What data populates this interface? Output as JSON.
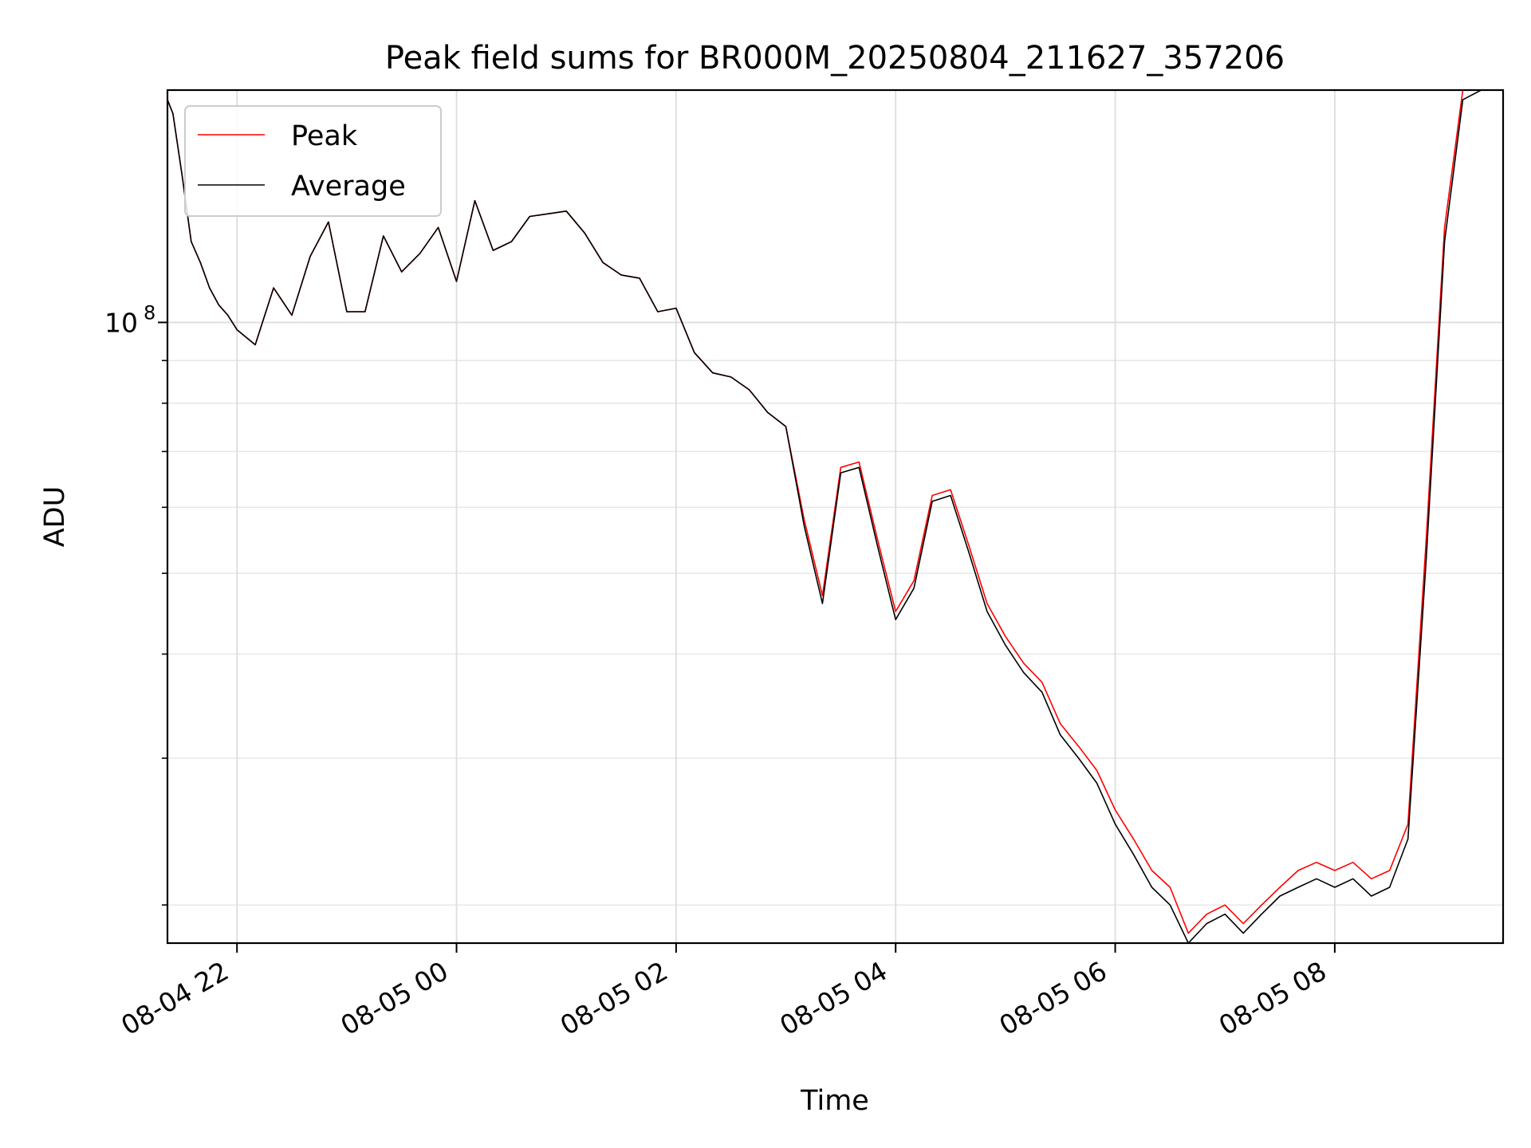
{
  "chart_data": {
    "type": "line",
    "title": "Peak field sums for BR000M_20250804_211627_357206",
    "xlabel": "Time",
    "ylabel": "ADU",
    "y_scale": "log",
    "ylim": [
      18000000,
      190000000
    ],
    "xlim": [
      "2025-08-04 21:22",
      "2025-08-05 09:32"
    ],
    "x_ticks": [
      {
        "value": "2025-08-04 22:00",
        "label": "08-04 22"
      },
      {
        "value": "2025-08-05 00:00",
        "label": "08-05 00"
      },
      {
        "value": "2025-08-05 02:00",
        "label": "08-05 02"
      },
      {
        "value": "2025-08-05 04:00",
        "label": "08-05 04"
      },
      {
        "value": "2025-08-05 06:00",
        "label": "08-05 06"
      },
      {
        "value": "2025-08-05 08:00",
        "label": "08-05 08"
      }
    ],
    "y_major_ticks": [
      {
        "value": 100000000,
        "base": "10",
        "exp": "8"
      }
    ],
    "y_minor_ticks": [
      20000000,
      30000000,
      40000000,
      50000000,
      60000000,
      70000000,
      80000000,
      90000000,
      200000000
    ],
    "grid": true,
    "legend_position": "top-left",
    "x": [
      "2025-08-04 21:22",
      "2025-08-04 21:25",
      "2025-08-04 21:30",
      "2025-08-04 21:35",
      "2025-08-04 21:40",
      "2025-08-04 21:45",
      "2025-08-04 21:50",
      "2025-08-04 21:55",
      "2025-08-04 22:00",
      "2025-08-04 22:10",
      "2025-08-04 22:20",
      "2025-08-04 22:30",
      "2025-08-04 22:40",
      "2025-08-04 22:50",
      "2025-08-04 23:00",
      "2025-08-04 23:10",
      "2025-08-04 23:20",
      "2025-08-04 23:30",
      "2025-08-04 23:40",
      "2025-08-04 23:50",
      "2025-08-05 00:00",
      "2025-08-05 00:10",
      "2025-08-05 00:20",
      "2025-08-05 00:30",
      "2025-08-05 00:40",
      "2025-08-05 00:50",
      "2025-08-05 01:00",
      "2025-08-05 01:10",
      "2025-08-05 01:20",
      "2025-08-05 01:30",
      "2025-08-05 01:40",
      "2025-08-05 01:50",
      "2025-08-05 02:00",
      "2025-08-05 02:10",
      "2025-08-05 02:20",
      "2025-08-05 02:30",
      "2025-08-05 02:40",
      "2025-08-05 02:50",
      "2025-08-05 03:00",
      "2025-08-05 03:10",
      "2025-08-05 03:20",
      "2025-08-05 03:30",
      "2025-08-05 03:40",
      "2025-08-05 03:50",
      "2025-08-05 04:00",
      "2025-08-05 04:10",
      "2025-08-05 04:20",
      "2025-08-05 04:30",
      "2025-08-05 04:40",
      "2025-08-05 04:50",
      "2025-08-05 05:00",
      "2025-08-05 05:10",
      "2025-08-05 05:20",
      "2025-08-05 05:30",
      "2025-08-05 05:40",
      "2025-08-05 05:50",
      "2025-08-05 06:00",
      "2025-08-05 06:10",
      "2025-08-05 06:20",
      "2025-08-05 06:30",
      "2025-08-05 06:40",
      "2025-08-05 06:50",
      "2025-08-05 07:00",
      "2025-08-05 07:10",
      "2025-08-05 07:20",
      "2025-08-05 07:30",
      "2025-08-05 07:40",
      "2025-08-05 07:50",
      "2025-08-05 08:00",
      "2025-08-05 08:10",
      "2025-08-05 08:20",
      "2025-08-05 08:30",
      "2025-08-05 08:40",
      "2025-08-05 08:50",
      "2025-08-05 09:00",
      "2025-08-05 09:10",
      "2025-08-05 09:20",
      "2025-08-05 09:25"
    ],
    "series": [
      {
        "name": "Peak",
        "color": "#ff0000",
        "values": [
          185000000,
          178000000,
          150000000,
          125000000,
          118000000,
          110000000,
          105000000,
          102000000,
          98000000,
          94000000,
          110000000,
          102000000,
          120000000,
          132000000,
          103000000,
          103000000,
          127000000,
          115000000,
          121000000,
          130000000,
          112000000,
          140000000,
          122000000,
          125000000,
          134000000,
          135000000,
          136000000,
          128000000,
          118000000,
          114000000,
          113000000,
          103000000,
          104000000,
          92000000,
          87000000,
          86000000,
          83000000,
          78000000,
          75000000,
          58000000,
          47000000,
          67000000,
          68000000,
          55000000,
          45000000,
          49000000,
          62000000,
          63000000,
          54000000,
          46000000,
          42000000,
          39000000,
          37000000,
          33000000,
          31000000,
          29000000,
          26000000,
          24000000,
          22000000,
          21000000,
          18500000,
          19500000,
          20000000,
          19000000,
          20000000,
          21000000,
          22000000,
          22500000,
          22000000,
          22500000,
          21500000,
          22000000,
          25000000,
          55000000,
          130000000,
          190000000,
          190000000,
          190000000
        ]
      },
      {
        "name": "Average",
        "color": "#000000",
        "values": [
          185000000,
          178000000,
          150000000,
          125000000,
          118000000,
          110000000,
          105000000,
          102000000,
          98000000,
          94000000,
          110000000,
          102000000,
          120000000,
          132000000,
          103000000,
          103000000,
          127000000,
          115000000,
          121000000,
          130000000,
          112000000,
          140000000,
          122000000,
          125000000,
          134000000,
          135000000,
          136000000,
          128000000,
          118000000,
          114000000,
          113000000,
          103000000,
          104000000,
          92000000,
          87000000,
          86000000,
          83000000,
          78000000,
          75000000,
          57000000,
          46000000,
          66000000,
          67000000,
          54000000,
          44000000,
          48000000,
          61000000,
          62000000,
          53000000,
          45000000,
          41000000,
          38000000,
          36000000,
          32000000,
          30000000,
          28000000,
          25000000,
          23000000,
          21000000,
          20000000,
          18000000,
          19000000,
          19500000,
          18500000,
          19500000,
          20500000,
          21000000,
          21500000,
          21000000,
          21500000,
          20500000,
          21000000,
          24000000,
          52000000,
          125000000,
          185000000,
          190000000,
          190000000
        ]
      }
    ]
  }
}
